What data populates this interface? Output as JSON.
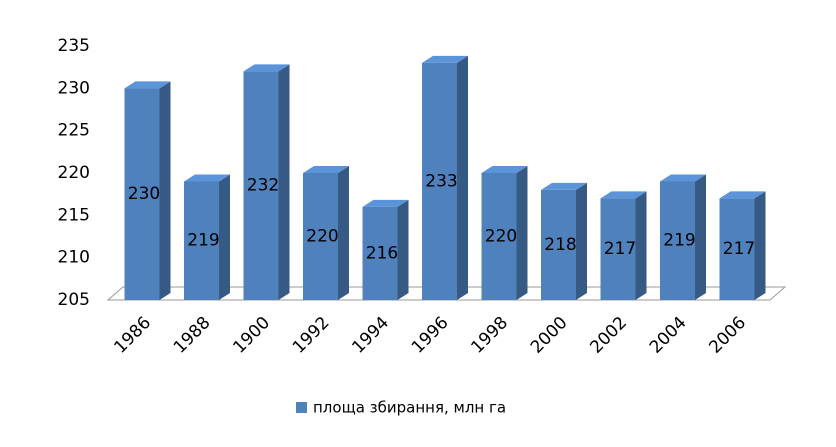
{
  "chart_data": {
    "type": "bar3d",
    "categories": [
      "1986",
      "1988",
      "1900",
      "1992",
      "1994",
      "1996",
      "1998",
      "2000",
      "2002",
      "2004",
      "2006"
    ],
    "series": [
      {
        "name": "площа збирання, млн га",
        "color": "#4f81bd",
        "values": [
          230,
          219,
          232,
          220,
          216,
          233,
          220,
          218,
          217,
          219,
          217
        ]
      }
    ],
    "ylim": [
      205,
      235
    ],
    "yticks": [
      205,
      210,
      215,
      220,
      225,
      230,
      235
    ],
    "grid": false,
    "legend": "bottom"
  }
}
